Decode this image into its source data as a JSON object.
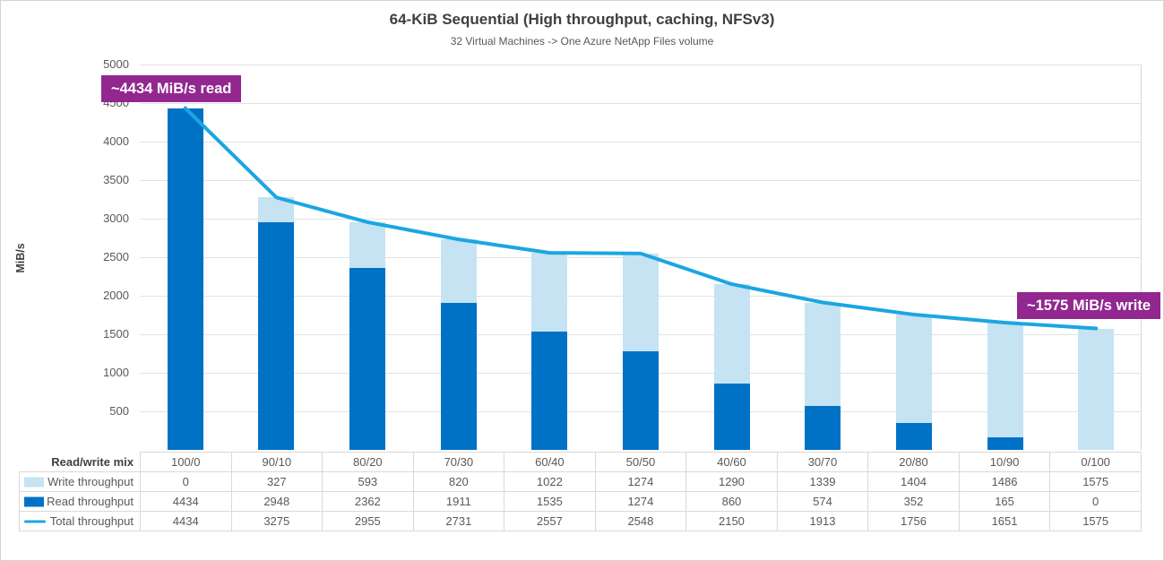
{
  "chart": {
    "title": "64-KiB Sequential (High throughput, caching, NFSv3)",
    "subtitle": "32 Virtual Machines -> One Azure NetApp Files volume",
    "y_axis_label": "MiB/s"
  },
  "annotations": {
    "read_callout": "~4434 MiB/s read",
    "write_callout": "~1575 MiB/s write",
    "callout_bg_color": "#92278F"
  },
  "chart_data": {
    "type": "bar",
    "subtype": "stacked-bars-with-line-overlay",
    "title": "64-KiB Sequential (High throughput, caching, NFSv3)",
    "subtitle": "32 Virtual Machines -> One Azure NetApp Files volume",
    "xlabel": "Read/write mix",
    "ylabel": "MiB/s",
    "ylim": [
      0,
      5000
    ],
    "y_ticks": [
      500,
      1000,
      1500,
      2000,
      2500,
      3000,
      3500,
      4000,
      4500,
      5000
    ],
    "grid": "horizontal",
    "legend_position": "data-table-left-column",
    "row_header": "Read/write mix",
    "categories": [
      "100/0",
      "90/10",
      "80/20",
      "70/30",
      "60/40",
      "50/50",
      "40/60",
      "30/70",
      "20/80",
      "10/90",
      "0/100"
    ],
    "series": [
      {
        "name": "Write throughput",
        "role": "bar-stack-top",
        "legend_swatch": "square",
        "color": "#C5E3F3",
        "values": [
          0,
          327,
          593,
          820,
          1022,
          1274,
          1290,
          1339,
          1404,
          1486,
          1575
        ]
      },
      {
        "name": "Read throughput",
        "role": "bar-stack-bottom",
        "legend_swatch": "square",
        "color": "#0072C6",
        "values": [
          4434,
          2948,
          2362,
          1911,
          1535,
          1274,
          860,
          574,
          352,
          165,
          0
        ]
      },
      {
        "name": "Total throughput",
        "role": "line",
        "legend_swatch": "line",
        "color": "#1BA6E2",
        "values": [
          4434,
          3275,
          2955,
          2731,
          2557,
          2548,
          2150,
          1913,
          1756,
          1651,
          1575
        ]
      }
    ]
  }
}
